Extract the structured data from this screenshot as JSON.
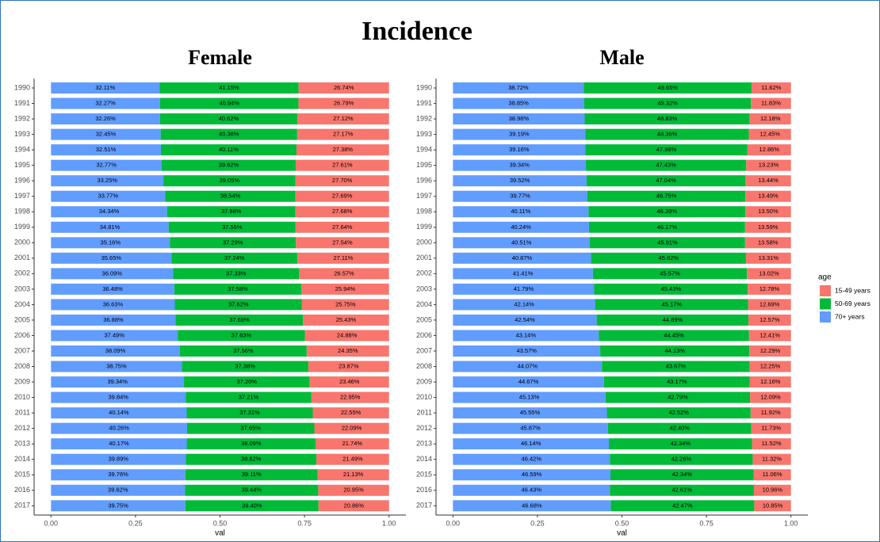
{
  "title": "Incidence",
  "legend": {
    "title": "age"
  },
  "chart_data": [
    {
      "type": "bar",
      "title": "Female",
      "xlabel": "val",
      "categories": [
        "1990",
        "1991",
        "1992",
        "1993",
        "1994",
        "1995",
        "1996",
        "1997",
        "1998",
        "1999",
        "2000",
        "2001",
        "2002",
        "2003",
        "2004",
        "2005",
        "2006",
        "2007",
        "2008",
        "2009",
        "2010",
        "2011",
        "2012",
        "2013",
        "2014",
        "2015",
        "2016",
        "2017"
      ],
      "xlim": [
        -0.05,
        1.05
      ],
      "xticks": [
        {
          "value": 0,
          "label": "0.00"
        },
        {
          "value": 0.25,
          "label": "0.25"
        },
        {
          "value": 0.5,
          "label": "0.50"
        },
        {
          "value": 0.75,
          "label": "0.75"
        },
        {
          "value": 1,
          "label": "1.00"
        }
      ],
      "series": [
        {
          "name": "15-49 years",
          "color": "#f8766d",
          "values": [
            0.2674,
            0.2679,
            0.2712,
            0.2717,
            0.2738,
            0.2761,
            0.277,
            0.2769,
            0.2768,
            0.2764,
            0.2754,
            0.2711,
            0.2657,
            0.2594,
            0.2575,
            0.2543,
            0.2488,
            0.2435,
            0.2387,
            0.2346,
            0.2295,
            0.2255,
            0.2209,
            0.2174,
            0.2149,
            0.2113,
            0.2095,
            0.2086
          ],
          "value_labels": [
            "26.74%",
            "26.79%",
            "27.12%",
            "27.17%",
            "27.38%",
            "27.61%",
            "27.70%",
            "27.69%",
            "27.68%",
            "27.64%",
            "27.54%",
            "27.11%",
            "26.57%",
            "25.94%",
            "25.75%",
            "25.43%",
            "24.88%",
            "24.35%",
            "23.87%",
            "23.46%",
            "22.95%",
            "22.55%",
            "22.09%",
            "21.74%",
            "21.49%",
            "21.13%",
            "20.95%",
            "20.86%"
          ]
        },
        {
          "name": "50-69 years",
          "color": "#00ba38",
          "values": [
            0.4115,
            0.4094,
            0.4062,
            0.4038,
            0.4011,
            0.3962,
            0.3905,
            0.3854,
            0.3798,
            0.3755,
            0.3729,
            0.3724,
            0.3733,
            0.3758,
            0.3762,
            0.3769,
            0.3763,
            0.3756,
            0.3738,
            0.372,
            0.3721,
            0.3731,
            0.3765,
            0.3809,
            0.3862,
            0.3911,
            0.3944,
            0.394
          ],
          "value_labels": [
            "41.15%",
            "40.94%",
            "40.62%",
            "40.38%",
            "40.11%",
            "39.62%",
            "39.05%",
            "38.54%",
            "37.98%",
            "37.55%",
            "37.29%",
            "37.24%",
            "37.33%",
            "37.58%",
            "37.62%",
            "37.69%",
            "37.63%",
            "37.56%",
            "37.38%",
            "37.20%",
            "37.21%",
            "37.31%",
            "37.65%",
            "38.09%",
            "38.62%",
            "39.11%",
            "39.44%",
            "39.40%"
          ]
        },
        {
          "name": "70+ years",
          "color": "#619cff",
          "values": [
            0.3211,
            0.3227,
            0.3226,
            0.3245,
            0.3251,
            0.3277,
            0.3325,
            0.3377,
            0.3434,
            0.3481,
            0.3516,
            0.3565,
            0.3609,
            0.3648,
            0.3663,
            0.3688,
            0.3749,
            0.3809,
            0.3875,
            0.3934,
            0.3984,
            0.4014,
            0.4026,
            0.4017,
            0.3989,
            0.3976,
            0.3962,
            0.3975
          ],
          "value_labels": [
            "32.11%",
            "32.27%",
            "32.26%",
            "32.45%",
            "32.51%",
            "32.77%",
            "33.25%",
            "33.77%",
            "34.34%",
            "34.81%",
            "35.16%",
            "35.65%",
            "36.09%",
            "36.48%",
            "36.63%",
            "36.88%",
            "37.49%",
            "38.09%",
            "38.75%",
            "39.34%",
            "39.84%",
            "40.14%",
            "40.26%",
            "40.17%",
            "39.89%",
            "39.76%",
            "39.62%",
            "39.75%"
          ]
        }
      ]
    },
    {
      "type": "bar",
      "title": "Male",
      "xlabel": "val",
      "categories": [
        "1990",
        "1991",
        "1992",
        "1993",
        "1994",
        "1995",
        "1996",
        "1997",
        "1998",
        "1999",
        "2000",
        "2001",
        "2002",
        "2003",
        "2004",
        "2005",
        "2006",
        "2007",
        "2008",
        "2009",
        "2010",
        "2011",
        "2012",
        "2013",
        "2014",
        "2015",
        "2016",
        "2017"
      ],
      "xlim": [
        -0.05,
        1.05
      ],
      "xticks": [
        {
          "value": 0,
          "label": "0.00"
        },
        {
          "value": 0.25,
          "label": "0.25"
        },
        {
          "value": 0.5,
          "label": "0.50"
        },
        {
          "value": 0.75,
          "label": "0.75"
        },
        {
          "value": 1,
          "label": "1.00"
        }
      ],
      "series": [
        {
          "name": "15-49 years",
          "color": "#f8766d",
          "values": [
            0.1162,
            0.1183,
            0.1218,
            0.1245,
            0.1286,
            0.1323,
            0.1344,
            0.1349,
            0.135,
            0.1359,
            0.1358,
            0.1331,
            0.1302,
            0.1278,
            0.1269,
            0.1257,
            0.1241,
            0.1229,
            0.1225,
            0.1216,
            0.1209,
            0.1192,
            0.1173,
            0.1152,
            0.1132,
            0.1106,
            0.1096,
            0.1085
          ],
          "value_labels": [
            "11.62%",
            "11.83%",
            "12.18%",
            "12.45%",
            "12.86%",
            "13.23%",
            "13.44%",
            "13.49%",
            "13.50%",
            "13.59%",
            "13.58%",
            "13.31%",
            "13.02%",
            "12.78%",
            "12.69%",
            "12.57%",
            "12.41%",
            "12.29%",
            "12.25%",
            "12.16%",
            "12.09%",
            "11.92%",
            "11.73%",
            "11.52%",
            "11.32%",
            "11.06%",
            "10.96%",
            "10.85%"
          ]
        },
        {
          "name": "50-69 years",
          "color": "#00ba38",
          "values": [
            0.4965,
            0.4932,
            0.4883,
            0.4836,
            0.4798,
            0.4743,
            0.4704,
            0.4675,
            0.4639,
            0.4617,
            0.4591,
            0.4582,
            0.4557,
            0.4543,
            0.4517,
            0.4489,
            0.4445,
            0.4413,
            0.4367,
            0.4317,
            0.4279,
            0.4252,
            0.424,
            0.4234,
            0.4226,
            0.4234,
            0.4261,
            0.4247
          ],
          "value_labels": [
            "49.65%",
            "49.32%",
            "48.83%",
            "48.36%",
            "47.98%",
            "47.43%",
            "47.04%",
            "46.75%",
            "46.39%",
            "46.17%",
            "45.91%",
            "45.82%",
            "45.57%",
            "45.43%",
            "45.17%",
            "44.89%",
            "44.45%",
            "44.13%",
            "43.67%",
            "43.17%",
            "42.79%",
            "42.52%",
            "42.40%",
            "42.34%",
            "42.26%",
            "42.34%",
            "42.61%",
            "42.47%"
          ]
        },
        {
          "name": "70+ years",
          "color": "#619cff",
          "values": [
            0.3872,
            0.3885,
            0.3898,
            0.3919,
            0.3916,
            0.3934,
            0.3952,
            0.3977,
            0.4011,
            0.4024,
            0.4051,
            0.4087,
            0.4141,
            0.4179,
            0.4214,
            0.4254,
            0.4314,
            0.4357,
            0.4407,
            0.4467,
            0.4513,
            0.4555,
            0.4587,
            0.4614,
            0.4642,
            0.4659,
            0.4643,
            0.4668
          ],
          "value_labels": [
            "38.72%",
            "38.85%",
            "38.98%",
            "39.19%",
            "39.16%",
            "39.34%",
            "39.52%",
            "39.77%",
            "40.11%",
            "40.24%",
            "40.51%",
            "40.87%",
            "41.41%",
            "41.79%",
            "42.14%",
            "42.54%",
            "43.14%",
            "43.57%",
            "44.07%",
            "44.67%",
            "45.13%",
            "45.55%",
            "45.87%",
            "46.14%",
            "46.42%",
            "46.59%",
            "46.43%",
            "46.68%"
          ]
        }
      ]
    }
  ]
}
